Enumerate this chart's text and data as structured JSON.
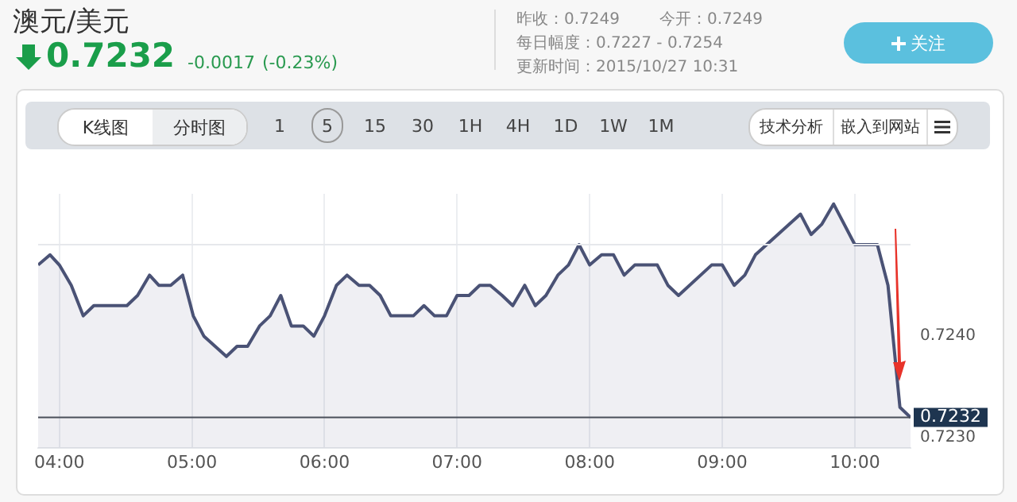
{
  "chart_data": {
    "type": "area",
    "title": "澳元/美元",
    "subtitle": "0.7232",
    "annotations": [
      "-0.0017",
      "(-0.23%)",
      "昨收：0.7249",
      "今开：0.7249",
      "每日幅度：0.7227 - 0.7254",
      "更新时间：2015/10/27 10:31",
      "关注",
      "K线图",
      "分时图",
      "1 5 15 30 1H 4H 1D 1W 1M",
      "技术分析",
      "嵌入到网站"
    ],
    "x": [
      3.84,
      3.93,
      4.0,
      4.09,
      4.18,
      4.26,
      4.51,
      4.59,
      4.68,
      4.75,
      4.84,
      4.93,
      5.01,
      5.09,
      5.26,
      5.34,
      5.42,
      5.51,
      5.59,
      5.67,
      5.75,
      5.84,
      5.92,
      6.0,
      6.09,
      6.17,
      6.26,
      6.34,
      6.42,
      6.5,
      6.67,
      6.75,
      6.83,
      6.92,
      7.0,
      7.09,
      7.17,
      7.25,
      7.34,
      7.42,
      7.51,
      7.59,
      7.67,
      7.76,
      7.84,
      7.92,
      8.0,
      8.09,
      8.18,
      8.26,
      8.34,
      8.51,
      8.59,
      8.67,
      8.92,
      9.0,
      9.09,
      9.17,
      9.25,
      9.59,
      9.67,
      9.75,
      9.84,
      10.0,
      10.17,
      10.25,
      10.34,
      10.42
    ],
    "series": [
      {
        "color": "#4a5275",
        "values": [
          0.7247,
          0.7248,
          0.7247,
          0.7245,
          0.7242,
          0.7243,
          0.7243,
          0.7244,
          0.7246,
          0.7245,
          0.7245,
          0.7246,
          0.7242,
          0.724,
          0.7238,
          0.7239,
          0.7239,
          0.7241,
          0.7242,
          0.7244,
          0.7241,
          0.7241,
          0.724,
          0.7242,
          0.7245,
          0.7246,
          0.7245,
          0.7245,
          0.7244,
          0.7242,
          0.7242,
          0.7243,
          0.7242,
          0.7242,
          0.7244,
          0.7244,
          0.7245,
          0.7245,
          0.7244,
          0.7243,
          0.7245,
          0.7243,
          0.7244,
          0.7246,
          0.7247,
          0.7249,
          0.7247,
          0.7248,
          0.7248,
          0.7246,
          0.7247,
          0.7247,
          0.7245,
          0.7244,
          0.7247,
          0.7247,
          0.7245,
          0.7246,
          0.7248,
          0.7252,
          0.725,
          0.7251,
          0.7253,
          0.7249,
          0.7249,
          0.7245,
          0.7233,
          0.7232
        ]
      }
    ],
    "xlim": [
      3.84,
      10.42
    ],
    "xticks": [
      {
        "value": 4,
        "label": "04:00"
      },
      {
        "value": 5,
        "label": "05:00"
      },
      {
        "value": 6,
        "label": "06:00"
      },
      {
        "value": 7,
        "label": "07:00"
      },
      {
        "value": 8,
        "label": "08:00"
      },
      {
        "value": 9,
        "label": "09:00"
      },
      {
        "value": 10,
        "label": "10:00"
      }
    ],
    "ylim": [
      0.7229,
      0.7254
    ],
    "yticks": [
      {
        "value": 0.723,
        "label": "0.7230"
      },
      {
        "value": 0.724,
        "label": "0.7240"
      }
    ],
    "grid": "x",
    "ref_lines": [
      {
        "axis": "y",
        "value": 0.7249,
        "color": "#e6e8ec"
      },
      {
        "axis": "y",
        "value": 0.7232,
        "label": "0.7232",
        "color": "#4a4f5a"
      }
    ]
  }
}
